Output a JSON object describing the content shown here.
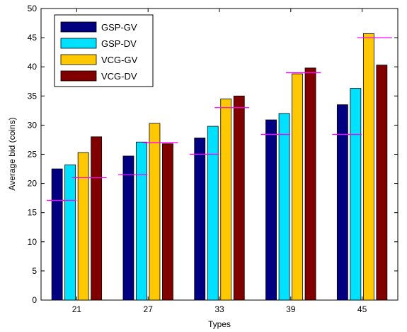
{
  "chart_data": {
    "type": "bar",
    "title": "",
    "xlabel": "Types",
    "ylabel": "Average bid (coins)",
    "categories": [
      "21",
      "27",
      "33",
      "39",
      "45"
    ],
    "ylim": [
      0,
      50
    ],
    "yticks": [
      0,
      5,
      10,
      15,
      20,
      25,
      30,
      35,
      40,
      45,
      50
    ],
    "grid": false,
    "legend_position": "top-left",
    "series": [
      {
        "name": "GSP-GV",
        "color": "#000080",
        "values": [
          22.5,
          24.7,
          27.8,
          30.9,
          33.5
        ]
      },
      {
        "name": "GSP-DV",
        "color": "#00E0FF",
        "values": [
          23.2,
          27.1,
          29.8,
          32.0,
          36.3
        ]
      },
      {
        "name": "VCG-GV",
        "color": "#FFC800",
        "values": [
          25.3,
          30.3,
          34.5,
          38.8,
          45.7
        ]
      },
      {
        "name": "VCG-DV",
        "color": "#800000",
        "values": [
          28.0,
          26.8,
          35.0,
          39.8,
          40.3
        ]
      }
    ],
    "reference_lines": {
      "color": "#FF00FF",
      "lines": [
        {
          "category": "21",
          "side": "left",
          "value": 17.1
        },
        {
          "category": "21",
          "side": "right",
          "value": 21.0
        },
        {
          "category": "27",
          "side": "left",
          "value": 21.5
        },
        {
          "category": "27",
          "side": "right",
          "value": 27.0
        },
        {
          "category": "33",
          "side": "left",
          "value": 25.0
        },
        {
          "category": "33",
          "side": "right",
          "value": 33.0
        },
        {
          "category": "39",
          "side": "left",
          "value": 28.4
        },
        {
          "category": "39",
          "side": "right",
          "value": 39.0
        },
        {
          "category": "45",
          "side": "left",
          "value": 28.4
        },
        {
          "category": "45",
          "side": "right",
          "value": 45.0
        }
      ]
    }
  }
}
